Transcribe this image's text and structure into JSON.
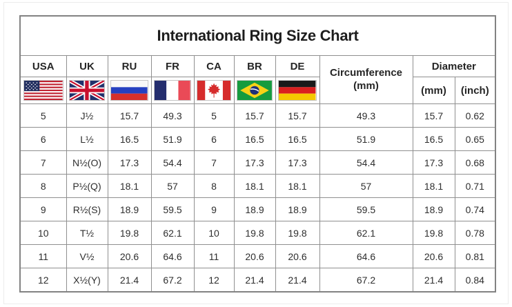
{
  "chart_data": {
    "type": "table",
    "title": "International Ring Size Chart",
    "country_columns": [
      {
        "code": "USA",
        "icon": "usa-flag-icon"
      },
      {
        "code": "UK",
        "icon": "uk-flag-icon"
      },
      {
        "code": "RU",
        "icon": "russia-flag-icon"
      },
      {
        "code": "FR",
        "icon": "france-flag-icon"
      },
      {
        "code": "CA",
        "icon": "canada-flag-icon"
      },
      {
        "code": "BR",
        "icon": "brazil-flag-icon"
      },
      {
        "code": "DE",
        "icon": "germany-flag-icon"
      }
    ],
    "circumference_header": {
      "line1": "Circumference",
      "line2": "(mm)"
    },
    "diameter_header": {
      "label": "Diameter",
      "sub_mm": "(mm)",
      "sub_inch": "(inch)"
    },
    "column_keys": [
      "usa",
      "uk",
      "ru",
      "fr",
      "ca",
      "br",
      "de",
      "circumference-mm",
      "diameter-mm",
      "diameter-inch"
    ],
    "rows": [
      [
        "5",
        "J½",
        "15.7",
        "49.3",
        "5",
        "15.7",
        "15.7",
        "49.3",
        "15.7",
        "0.62"
      ],
      [
        "6",
        "L½",
        "16.5",
        "51.9",
        "6",
        "16.5",
        "16.5",
        "51.9",
        "16.5",
        "0.65"
      ],
      [
        "7",
        "N½(O)",
        "17.3",
        "54.4",
        "7",
        "17.3",
        "17.3",
        "54.4",
        "17.3",
        "0.68"
      ],
      [
        "8",
        "P½(Q)",
        "18.1",
        "57",
        "8",
        "18.1",
        "18.1",
        "57",
        "18.1",
        "0.71"
      ],
      [
        "9",
        "R½(S)",
        "18.9",
        "59.5",
        "9",
        "18.9",
        "18.9",
        "59.5",
        "18.9",
        "0.74"
      ],
      [
        "10",
        "T½",
        "19.8",
        "62.1",
        "10",
        "19.8",
        "19.8",
        "62.1",
        "19.8",
        "0.78"
      ],
      [
        "11",
        "V½",
        "20.6",
        "64.6",
        "11",
        "20.6",
        "20.6",
        "64.6",
        "20.6",
        "0.81"
      ],
      [
        "12",
        "X½(Y)",
        "21.4",
        "67.2",
        "12",
        "21.4",
        "21.4",
        "67.2",
        "21.4",
        "0.84"
      ]
    ]
  },
  "colors": {
    "grid_border": "#8f8f8f",
    "outer_border": "#828282",
    "text": "#2e2e2e",
    "background": "#ffffff"
  }
}
